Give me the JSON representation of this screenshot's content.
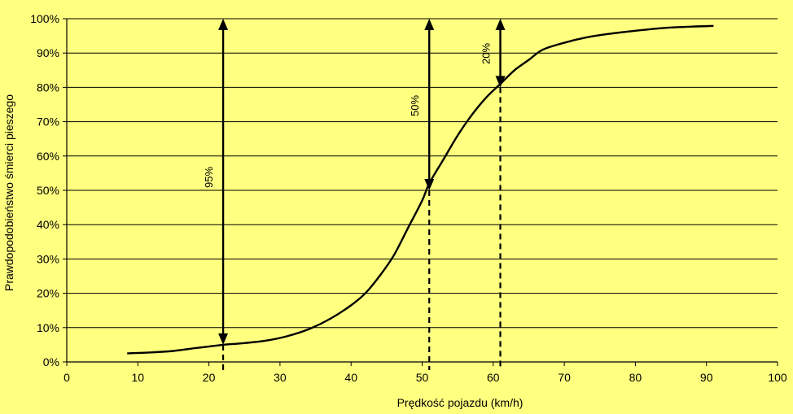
{
  "chart_data": {
    "type": "line",
    "title": "",
    "xlabel": "Prędkość pojazdu (km/h)",
    "ylabel": "Prawdopodobieństwo śmierci pieszego",
    "xlim": [
      0,
      100
    ],
    "ylim": [
      0,
      100
    ],
    "x_ticks": [
      "0",
      "10",
      "20",
      "30",
      "40",
      "50",
      "60",
      "70",
      "80",
      "90",
      "100"
    ],
    "y_ticks": [
      "0%",
      "10%",
      "20%",
      "30%",
      "40%",
      "50%",
      "60%",
      "70%",
      "80%",
      "90%",
      "100%"
    ],
    "grid": "horizontal",
    "series": [
      {
        "x": [
          8.5,
          12,
          15,
          18,
          20,
          22,
          25,
          28,
          31,
          34,
          37,
          40,
          42,
          44,
          46,
          48,
          50,
          51,
          53,
          55,
          57,
          59,
          61,
          63,
          65,
          67,
          70,
          73,
          76,
          80,
          84,
          88,
          91
        ],
        "y": [
          2.5,
          2.8,
          3.2,
          4.0,
          4.5,
          5.0,
          5.5,
          6.2,
          7.5,
          9.5,
          12.5,
          16.5,
          20,
          25,
          31,
          39,
          47,
          52,
          59,
          66,
          72,
          77,
          81,
          85,
          88,
          91,
          93,
          94.5,
          95.5,
          96.5,
          97.3,
          97.7,
          97.9
        ]
      }
    ],
    "annotations": [
      {
        "label": "95%",
        "x": 22,
        "y_top": 100,
        "y_bottom": 5,
        "dashed_to_axis": true
      },
      {
        "label": "50%",
        "x": 51,
        "y_top": 100,
        "y_bottom": 50,
        "dashed_to_axis": true
      },
      {
        "label": "20%",
        "x": 61,
        "y_top": 100,
        "y_bottom": 80,
        "dashed_to_axis": true
      }
    ],
    "colors": {
      "background": "#FFFF80",
      "line": "#000000",
      "frame": "#000000"
    }
  }
}
